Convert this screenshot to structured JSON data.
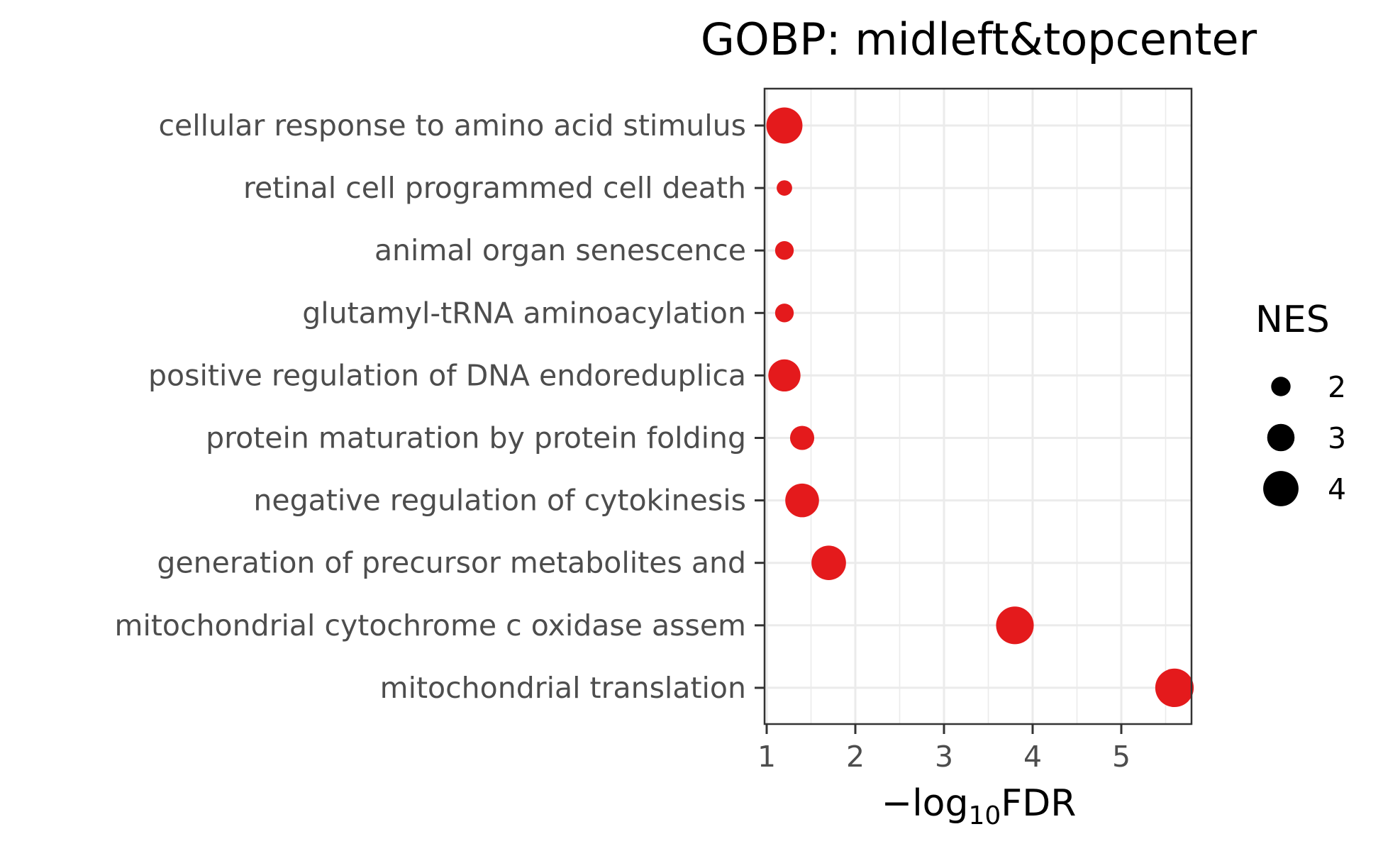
{
  "chart_data": {
    "type": "scatter",
    "title": "GOBP: midleft&topcenter",
    "xlabel": {
      "prefix": "−log",
      "subscript": "10",
      "suffix": "FDR"
    },
    "ylabel": "",
    "xlim": [
      1,
      5.8
    ],
    "xticks": [
      1,
      2,
      3,
      4,
      5
    ],
    "grid": true,
    "legend": {
      "title": "NES",
      "position": "right",
      "entries": [
        {
          "label": "2",
          "value": 2
        },
        {
          "label": "3",
          "value": 3
        },
        {
          "label": "4",
          "value": 4
        }
      ]
    },
    "color": "#e41a1c",
    "categories": [
      "cellular response to amino acid stimulus",
      "retinal cell programmed cell death",
      "animal organ senescence",
      "glutamyl-tRNA aminoacylation",
      "positive regulation of DNA endoreduplica",
      "protein maturation by protein folding",
      "negative regulation of cytokinesis",
      "generation of precursor metabolites and ",
      "mitochondrial cytochrome c oxidase assem",
      "mitochondrial translation"
    ],
    "x": [
      1.2,
      1.2,
      1.2,
      1.2,
      1.2,
      1.4,
      1.4,
      1.7,
      3.8,
      5.6
    ],
    "size": [
      4.1,
      1.5,
      1.9,
      1.9,
      3.6,
      2.6,
      3.8,
      3.9,
      4.3,
      4.4
    ]
  }
}
